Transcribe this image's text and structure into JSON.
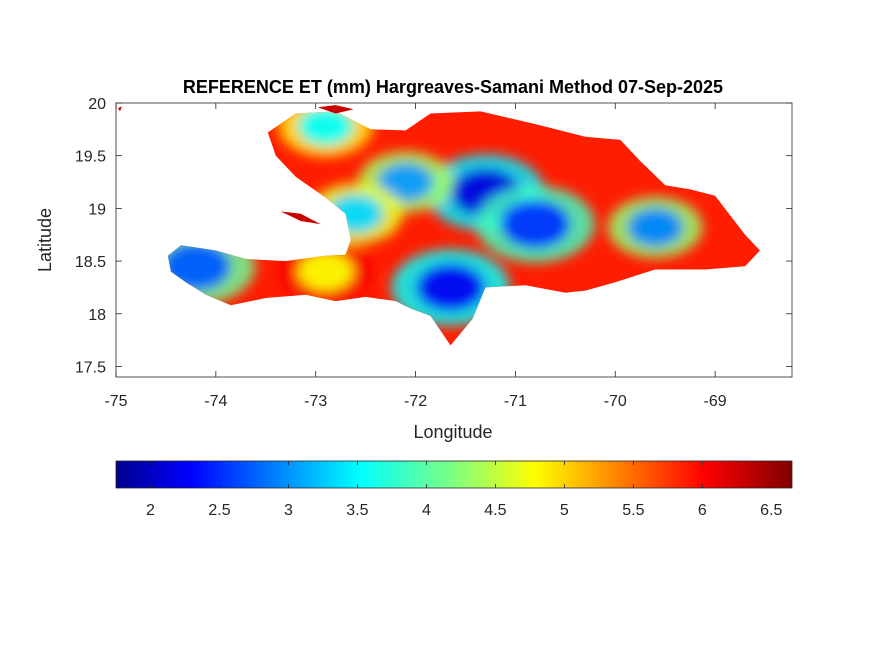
{
  "chart_data": {
    "type": "heatmap",
    "title": "REFERENCE ET (mm) Hargreaves-Samani Method  07-Sep-2025",
    "xlabel": "Longitude",
    "ylabel": "Latitude",
    "xlim": [
      -75,
      -68.23
    ],
    "ylim": [
      17.4,
      20
    ],
    "x_ticks": [
      -75,
      -74,
      -73,
      -72,
      -71,
      -70,
      -69
    ],
    "y_ticks": [
      17.5,
      18,
      18.5,
      19,
      19.5,
      20
    ],
    "x_tick_labels": [
      "-75",
      "-74",
      "-73",
      "-72",
      "-71",
      "-70",
      "-69"
    ],
    "y_tick_labels": [
      "17.5",
      "18",
      "18.5",
      "19",
      "19.5",
      "20"
    ],
    "colormap": "jet",
    "colorbar": {
      "orientation": "horizontal",
      "location": "below",
      "clim": [
        1.75,
        6.65
      ],
      "ticks": [
        2,
        2.5,
        3,
        3.5,
        4,
        4.5,
        5,
        5.5,
        6,
        6.5
      ],
      "tick_labels": [
        "2",
        "2.5",
        "3",
        "3.5",
        "4",
        "4.5",
        "5",
        "5.5",
        "6",
        "6.5"
      ]
    },
    "land_outline": [
      [
        -73.48,
        19.72
      ],
      [
        -73.2,
        19.9
      ],
      [
        -72.8,
        19.92
      ],
      [
        -72.45,
        19.75
      ],
      [
        -72.1,
        19.74
      ],
      [
        -71.85,
        19.9
      ],
      [
        -71.35,
        19.92
      ],
      [
        -70.8,
        19.8
      ],
      [
        -70.3,
        19.68
      ],
      [
        -69.95,
        19.65
      ],
      [
        -69.75,
        19.45
      ],
      [
        -69.5,
        19.22
      ],
      [
        -69.25,
        19.18
      ],
      [
        -69.0,
        19.12
      ],
      [
        -68.7,
        18.75
      ],
      [
        -68.55,
        18.6
      ],
      [
        -68.7,
        18.45
      ],
      [
        -69.1,
        18.42
      ],
      [
        -69.6,
        18.42
      ],
      [
        -70.0,
        18.3
      ],
      [
        -70.3,
        18.22
      ],
      [
        -70.5,
        18.2
      ],
      [
        -70.9,
        18.27
      ],
      [
        -71.3,
        18.25
      ],
      [
        -71.43,
        17.95
      ],
      [
        -71.65,
        17.7
      ],
      [
        -71.85,
        17.98
      ],
      [
        -72.05,
        18.05
      ],
      [
        -72.2,
        18.12
      ],
      [
        -72.5,
        18.16
      ],
      [
        -72.8,
        18.12
      ],
      [
        -73.1,
        18.18
      ],
      [
        -73.5,
        18.15
      ],
      [
        -73.85,
        18.08
      ],
      [
        -74.1,
        18.18
      ],
      [
        -74.3,
        18.3
      ],
      [
        -74.45,
        18.4
      ],
      [
        -74.48,
        18.55
      ],
      [
        -74.35,
        18.65
      ],
      [
        -74.0,
        18.6
      ],
      [
        -73.7,
        18.52
      ],
      [
        -73.3,
        18.5
      ],
      [
        -72.9,
        18.55
      ],
      [
        -72.7,
        18.56
      ],
      [
        -72.65,
        18.7
      ],
      [
        -72.7,
        18.95
      ],
      [
        -72.9,
        19.1
      ],
      [
        -73.2,
        19.3
      ],
      [
        -73.4,
        19.5
      ]
    ],
    "islands": [
      [
        [
          -73.35,
          18.97
        ],
        [
          -73.15,
          18.95
        ],
        [
          -72.95,
          18.85
        ],
        [
          -73.15,
          18.88
        ]
      ],
      [
        [
          -72.98,
          19.96
        ],
        [
          -72.8,
          19.98
        ],
        [
          -72.62,
          19.94
        ],
        [
          -72.8,
          19.9
        ]
      ],
      [
        [
          -74.98,
          19.95
        ],
        [
          -74.94,
          19.97
        ],
        [
          -74.96,
          19.92
        ]
      ]
    ],
    "blue_zones": [
      {
        "lon": -74.2,
        "lat": 18.45,
        "value": 2.8
      },
      {
        "lon": -71.3,
        "lat": 19.15,
        "value": 2.2
      },
      {
        "lon": -71.65,
        "lat": 18.25,
        "value": 2.3
      },
      {
        "lon": -69.6,
        "lat": 18.82,
        "value": 3.0
      },
      {
        "lon": -72.1,
        "lat": 19.25,
        "value": 3.1
      },
      {
        "lon": -72.6,
        "lat": 18.95,
        "value": 3.4
      },
      {
        "lon": -70.8,
        "lat": 18.85,
        "value": 2.6
      },
      {
        "lon": -72.9,
        "lat": 19.78,
        "value": 3.6
      },
      {
        "lon": -72.9,
        "lat": 18.4,
        "value": 4.8
      }
    ]
  }
}
